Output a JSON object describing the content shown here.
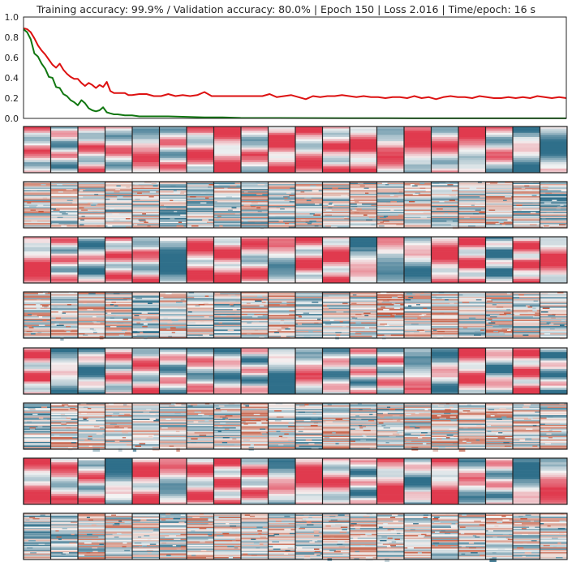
{
  "title": "Training accuracy: 99.9% / Validation accuracy: 80.0% | Epoch 150 | Loss 2.016 | Time/epoch: 16 s",
  "chart_data": {
    "type": "line",
    "title": "Training accuracy: 99.9% / Validation accuracy: 80.0% | Epoch 150 | Loss 2.016 | Time/epoch: 16 s",
    "xlim": [
      0,
      150
    ],
    "ylim": [
      0.0,
      1.0
    ],
    "yticks": [
      "0.0",
      "0.2",
      "0.4",
      "0.6",
      "0.8",
      "1.0"
    ],
    "grid": false,
    "series": [
      {
        "color": "#dd1111",
        "x": [
          0,
          1,
          2,
          3,
          4,
          5,
          6,
          7,
          8,
          9,
          10,
          11,
          12,
          13,
          14,
          15,
          16,
          17,
          18,
          19,
          20,
          21,
          22,
          23,
          24,
          25,
          26,
          27,
          28,
          29,
          30,
          32,
          34,
          36,
          38,
          40,
          42,
          44,
          46,
          48,
          50,
          52,
          54,
          56,
          58,
          60,
          62,
          64,
          66,
          68,
          70,
          72,
          74,
          76,
          78,
          80,
          82,
          84,
          86,
          88,
          90,
          92,
          94,
          96,
          98,
          100,
          102,
          104,
          106,
          108,
          110,
          112,
          114,
          116,
          118,
          120,
          122,
          124,
          126,
          128,
          130,
          132,
          134,
          136,
          138,
          140,
          142,
          144,
          146,
          148,
          150
        ],
        "values": [
          0.89,
          0.88,
          0.85,
          0.79,
          0.72,
          0.67,
          0.63,
          0.58,
          0.53,
          0.5,
          0.54,
          0.48,
          0.44,
          0.41,
          0.39,
          0.39,
          0.35,
          0.32,
          0.35,
          0.33,
          0.3,
          0.33,
          0.31,
          0.36,
          0.27,
          0.25,
          0.25,
          0.25,
          0.25,
          0.23,
          0.23,
          0.24,
          0.24,
          0.22,
          0.22,
          0.24,
          0.22,
          0.23,
          0.22,
          0.23,
          0.26,
          0.22,
          0.22,
          0.22,
          0.22,
          0.22,
          0.22,
          0.22,
          0.22,
          0.24,
          0.21,
          0.22,
          0.23,
          0.21,
          0.19,
          0.22,
          0.21,
          0.22,
          0.22,
          0.23,
          0.22,
          0.21,
          0.22,
          0.21,
          0.21,
          0.2,
          0.21,
          0.21,
          0.2,
          0.22,
          0.2,
          0.21,
          0.19,
          0.21,
          0.22,
          0.21,
          0.21,
          0.2,
          0.22,
          0.21,
          0.2,
          0.2,
          0.21,
          0.2,
          0.21,
          0.2,
          0.22,
          0.21,
          0.2,
          0.21,
          0.2
        ]
      },
      {
        "color": "#117711",
        "x": [
          0,
          1,
          2,
          3,
          4,
          5,
          6,
          7,
          8,
          9,
          10,
          11,
          12,
          13,
          14,
          15,
          16,
          17,
          18,
          19,
          20,
          21,
          22,
          23,
          24,
          25,
          26,
          28,
          30,
          32,
          35,
          40,
          45,
          50,
          55,
          60,
          70,
          80,
          90,
          100,
          120,
          150
        ],
        "values": [
          0.88,
          0.85,
          0.78,
          0.64,
          0.61,
          0.54,
          0.49,
          0.41,
          0.4,
          0.31,
          0.3,
          0.24,
          0.22,
          0.18,
          0.16,
          0.13,
          0.18,
          0.15,
          0.1,
          0.08,
          0.07,
          0.08,
          0.11,
          0.06,
          0.05,
          0.04,
          0.04,
          0.03,
          0.03,
          0.02,
          0.02,
          0.02,
          0.015,
          0.01,
          0.01,
          0.005,
          0.004,
          0.003,
          0.002,
          0.002,
          0.001,
          0.001
        ]
      }
    ]
  },
  "heatmaps": {
    "rows": 8,
    "cols": 20,
    "style": [
      "smooth",
      "noisy",
      "smooth",
      "noisy",
      "smooth",
      "noisy",
      "smooth",
      "noisy"
    ],
    "colors": {
      "negative": "#2f6f8a",
      "neutral": "#f4f4f4",
      "positive": "#e03a4e",
      "warm": "#c2553a"
    }
  }
}
